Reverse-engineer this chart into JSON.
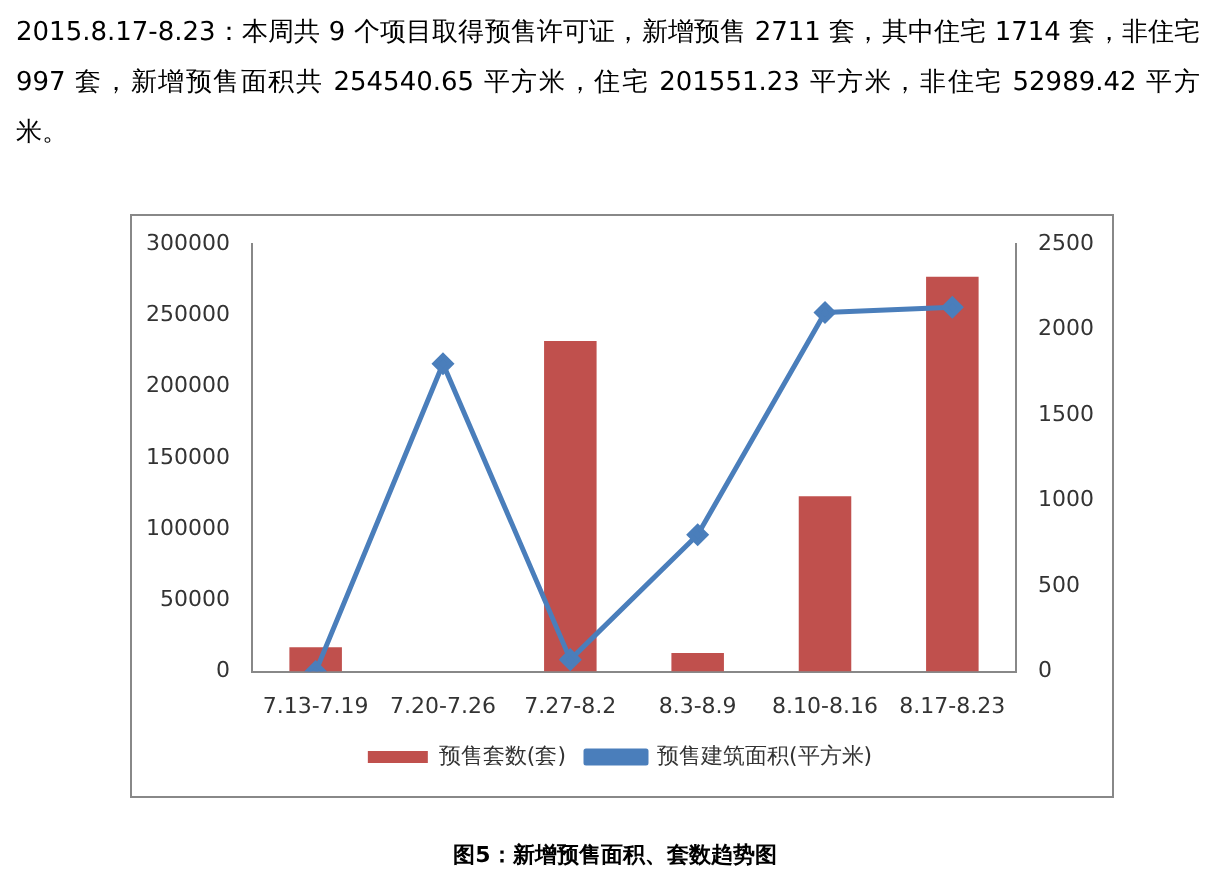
{
  "chart_data": {
    "type": "bar",
    "title": "图5：新增预售面积、套数趋势图",
    "annotations": [
      "2015.8.17-8.23：本周共 9 个项目取得预售许可证，新增预售 2711 套，其中住宅 1714 套，非住宅 997 套，新增预售面积共 254540.65 平方米，住宅 201551.23 平方米，非住宅 52989.42 平方米。"
    ],
    "categories": [
      "7.13-7.19",
      "7.20-7.26",
      "7.27-8.2",
      "8.3-8.9",
      "8.10-8.16",
      "8.17-8.23"
    ],
    "series": [
      {
        "name": "预售套数(套)",
        "color": "#c0504d",
        "values": [
          17000,
          0,
          232000,
          13000,
          123000,
          277000
        ]
      },
      {
        "name": "预售建筑面积(平方米)",
        "type": "line",
        "axis": "y2",
        "color": "#4a7ebb",
        "marker": "diamond",
        "values": [
          0,
          1800,
          70,
          800,
          2100,
          2130
        ]
      }
    ],
    "ylim": [
      0,
      300000
    ],
    "yticks": [
      0,
      50000,
      100000,
      150000,
      200000,
      250000,
      300000
    ],
    "y2lim": [
      0,
      2500
    ],
    "y2ticks": [
      0,
      500,
      1000,
      1500,
      2000,
      2500
    ],
    "grid": false,
    "legend": "bottom"
  }
}
